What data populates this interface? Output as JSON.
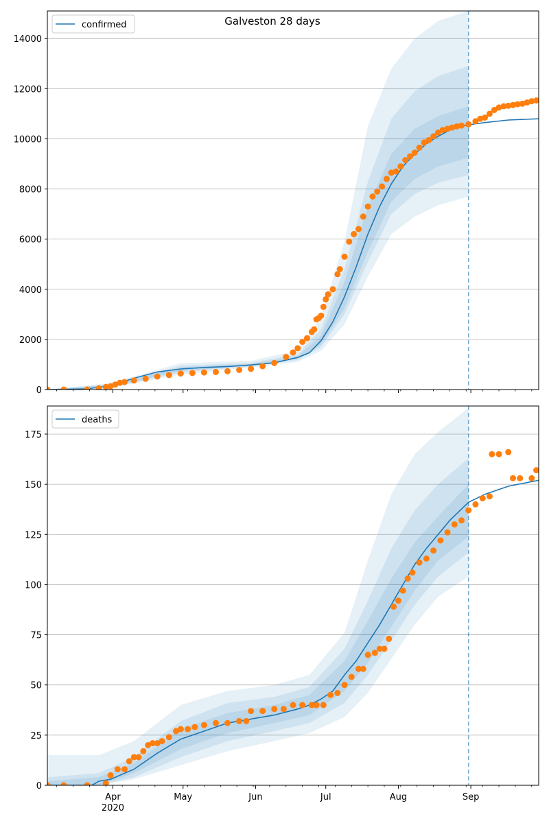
{
  "figure": {
    "title": "Galveston 28 days"
  },
  "colors": {
    "model": "#1f77b4",
    "observed": "#ff7f0e",
    "band": "#1f77b4",
    "grid": "#b0b0b0"
  },
  "x_axis": {
    "ticks": [
      {
        "day": 31,
        "label": "Apr",
        "sublabel": "2020"
      },
      {
        "day": 61,
        "label": "May",
        "sublabel": ""
      },
      {
        "day": 92,
        "label": "Jun",
        "sublabel": ""
      },
      {
        "day": 122,
        "label": "Jul",
        "sublabel": ""
      },
      {
        "day": 153,
        "label": "Aug",
        "sublabel": ""
      },
      {
        "day": 184,
        "label": "Sep",
        "sublabel": ""
      }
    ]
  },
  "chart_data": [
    {
      "type": "line",
      "legend": "confirmed",
      "legend_position": "top-left",
      "grid": "horizontal",
      "xlim": [
        3,
        213
      ],
      "ylim": [
        0,
        15100
      ],
      "yticks": [
        0,
        2000,
        4000,
        6000,
        8000,
        10000,
        12000,
        14000
      ],
      "forecast_start_day": 183,
      "model_curve": {
        "x": [
          3,
          20,
          30,
          40,
          50,
          60,
          70,
          80,
          90,
          100,
          110,
          115,
          120,
          125,
          130,
          135,
          140,
          145,
          150,
          155,
          160,
          165,
          170,
          175,
          180,
          183,
          190,
          200,
          213
        ],
        "y": [
          0,
          30,
          150,
          450,
          700,
          820,
          880,
          920,
          980,
          1070,
          1280,
          1470,
          1950,
          2700,
          3700,
          4900,
          6200,
          7300,
          8200,
          8900,
          9400,
          9800,
          10100,
          10350,
          10500,
          10560,
          10650,
          10750,
          10800
        ]
      },
      "bands": [
        {
          "x": [
            3,
            30,
            60,
            90,
            110,
            120,
            130,
            140,
            150,
            160,
            170,
            183
          ],
          "lower": [
            0,
            60,
            600,
            880,
            1100,
            1550,
            2600,
            4500,
            6200,
            6900,
            7350,
            7700
          ],
          "upper": [
            0,
            260,
            1050,
            1150,
            1550,
            2900,
            5900,
            10500,
            12800,
            14000,
            14700,
            15100
          ]
        },
        {
          "x": [
            3,
            30,
            60,
            90,
            110,
            120,
            130,
            140,
            150,
            160,
            170,
            183
          ],
          "lower": [
            0,
            90,
            680,
            920,
            1180,
            1700,
            3000,
            5100,
            7000,
            7800,
            8250,
            8550
          ],
          "upper": [
            0,
            210,
            950,
            1070,
            1400,
            2400,
            4800,
            8300,
            10800,
            11900,
            12500,
            12900
          ]
        },
        {
          "x": [
            3,
            30,
            60,
            90,
            110,
            120,
            130,
            140,
            150,
            160,
            170,
            183
          ],
          "lower": [
            0,
            110,
            740,
            950,
            1230,
            1800,
            3250,
            5500,
            7500,
            8400,
            8900,
            9250
          ],
          "upper": [
            0,
            180,
            890,
            1020,
            1330,
            2150,
            4300,
            7300,
            9400,
            10400,
            10900,
            11300
          ]
        }
      ],
      "observed": {
        "x": [
          3,
          10,
          20,
          25,
          28,
          30,
          32,
          34,
          36,
          40,
          45,
          50,
          55,
          60,
          65,
          70,
          75,
          80,
          85,
          90,
          95,
          100,
          105,
          108,
          110,
          112,
          114,
          116,
          117,
          118,
          119,
          120,
          121,
          122,
          123,
          125,
          127,
          128,
          130,
          132,
          134,
          136,
          138,
          140,
          142,
          144,
          146,
          148,
          150,
          152,
          154,
          156,
          158,
          160,
          162,
          164,
          166,
          168,
          170,
          172,
          174,
          176,
          178,
          180,
          183,
          186,
          188,
          190,
          192,
          194,
          196,
          198,
          200,
          202,
          204,
          206,
          208,
          210,
          212
        ],
        "y": [
          0,
          0,
          0,
          50,
          100,
          130,
          200,
          270,
          300,
          360,
          430,
          520,
          580,
          640,
          660,
          680,
          700,
          730,
          780,
          830,
          930,
          1060,
          1300,
          1480,
          1650,
          1900,
          2050,
          2300,
          2400,
          2800,
          2850,
          2950,
          3300,
          3600,
          3800,
          4000,
          4600,
          4800,
          5300,
          5900,
          6200,
          6400,
          6900,
          7300,
          7700,
          7900,
          8100,
          8400,
          8650,
          8700,
          8900,
          9150,
          9300,
          9450,
          9650,
          9850,
          9950,
          10100,
          10250,
          10350,
          10400,
          10450,
          10500,
          10530,
          10580,
          10700,
          10800,
          10850,
          11000,
          11150,
          11250,
          11300,
          11320,
          11350,
          11380,
          11400,
          11450,
          11500,
          11530
        ]
      }
    },
    {
      "type": "line",
      "legend": "deaths",
      "legend_position": "top-left",
      "grid": "horizontal",
      "xlim": [
        3,
        213
      ],
      "ylim": [
        0,
        189
      ],
      "yticks": [
        0,
        25,
        50,
        75,
        100,
        125,
        150,
        175
      ],
      "forecast_start_day": 183,
      "model_curve": {
        "x": [
          3,
          22,
          25,
          30,
          40,
          50,
          60,
          70,
          80,
          90,
          100,
          110,
          115,
          120,
          125,
          130,
          135,
          140,
          145,
          150,
          155,
          160,
          165,
          170,
          175,
          183,
          190,
          200,
          213
        ],
        "y": [
          0,
          0,
          2,
          3,
          8,
          16,
          23,
          27,
          31,
          33,
          35,
          38,
          40,
          43,
          47,
          55,
          62,
          71,
          80,
          90,
          100,
          110,
          118,
          125,
          132,
          141,
          145,
          149,
          152
        ]
      },
      "bands": [
        {
          "x": [
            3,
            25,
            40,
            60,
            80,
            100,
            115,
            130,
            140,
            150,
            160,
            170,
            183
          ],
          "lower": [
            0,
            0,
            3,
            10,
            17,
            22,
            26,
            34,
            46,
            63,
            80,
            94,
            104
          ],
          "upper": [
            15,
            15,
            22,
            40,
            47,
            50,
            55,
            76,
            112,
            145,
            165,
            176,
            188
          ]
        },
        {
          "x": [
            3,
            25,
            40,
            60,
            80,
            100,
            115,
            130,
            140,
            150,
            160,
            170,
            183
          ],
          "lower": [
            0,
            0,
            4,
            14,
            22,
            27,
            31,
            41,
            55,
            72,
            90,
            104,
            116
          ],
          "upper": [
            4,
            6,
            14,
            32,
            41,
            44,
            49,
            68,
            92,
            118,
            137,
            150,
            163
          ]
        },
        {
          "x": [
            3,
            25,
            40,
            60,
            80,
            100,
            115,
            130,
            140,
            150,
            160,
            170,
            183
          ],
          "lower": [
            0,
            0,
            6,
            18,
            26,
            31,
            35,
            47,
            61,
            79,
            97,
            112,
            124
          ],
          "upper": [
            2,
            4,
            11,
            28,
            36,
            40,
            45,
            62,
            82,
            103,
            121,
            134,
            150
          ]
        }
      ],
      "observed": {
        "x": [
          3,
          10,
          20,
          28,
          30,
          33,
          36,
          38,
          40,
          42,
          44,
          46,
          48,
          50,
          52,
          55,
          58,
          60,
          63,
          66,
          70,
          75,
          80,
          85,
          88,
          90,
          95,
          100,
          104,
          108,
          112,
          116,
          118,
          121,
          124,
          127,
          130,
          133,
          136,
          138,
          140,
          143,
          145,
          147,
          149,
          151,
          153,
          155,
          157,
          159,
          162,
          165,
          168,
          171,
          174,
          177,
          180,
          183,
          186,
          189,
          192,
          193,
          196,
          200,
          202,
          205,
          210,
          212
        ],
        "y": [
          0,
          0,
          0,
          1,
          5,
          8,
          8,
          12,
          14,
          14,
          17,
          20,
          21,
          21,
          22,
          24,
          27,
          28,
          28,
          29,
          30,
          31,
          31,
          32,
          32,
          37,
          37,
          38,
          38,
          40,
          40,
          40,
          40,
          40,
          45,
          46,
          50,
          54,
          58,
          58,
          65,
          66,
          68,
          68,
          73,
          89,
          92,
          97,
          103,
          106,
          111,
          113,
          117,
          122,
          126,
          130,
          132,
          137,
          140,
          143,
          144,
          165,
          165,
          166,
          153,
          153,
          153,
          157
        ]
      }
    }
  ]
}
